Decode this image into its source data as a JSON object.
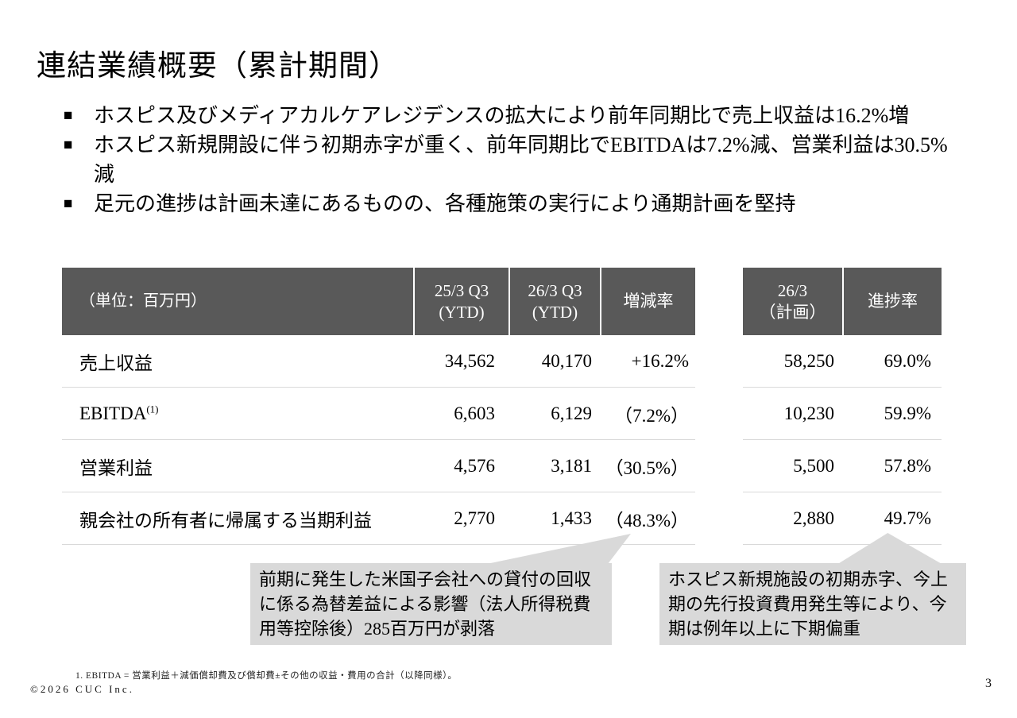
{
  "slide": {
    "title": "連結業績概要（累計期間）",
    "page_number": "3",
    "copyright": "©2026 CUC Inc.",
    "footnote": "1. EBITDA = 営業利益＋減価償却費及び償却費±その他の収益・費用の合計（以降同様）。"
  },
  "bullets": {
    "marker": "■",
    "items": [
      "ホスピス及びメディアカルケアレジデンスの拡大により前年同期比で売上収益は16.2%増",
      "ホスピス新規開設に伴う初期赤字が重く、前年同期比でEBITDAは7.2%減、営業利益は30.5%減",
      "足元の進捗は計画未達にあるものの、各種施策の実行により通期計画を堅持"
    ]
  },
  "main_table": {
    "unit_label": "（単位：百万円）",
    "col_prev_line1": "25/3 Q3",
    "col_prev_line2": "(YTD)",
    "col_curr_line1": "26/3 Q3",
    "col_curr_line2": "(YTD)",
    "col_change": "増減率",
    "rows": [
      {
        "label": "売上収益",
        "sup": "",
        "prev": "34,562",
        "curr": "40,170",
        "change": "+16.2%"
      },
      {
        "label": "EBITDA",
        "sup": "(1)",
        "prev": "6,603",
        "curr": "6,129",
        "change": "（7.2%）"
      },
      {
        "label": "営業利益",
        "sup": "",
        "prev": "4,576",
        "curr": "3,181",
        "change": "（30.5%）"
      },
      {
        "label": "親会社の所有者に帰属する当期利益",
        "sup": "",
        "prev": "2,770",
        "curr": "1,433",
        "change": "（48.3%）"
      }
    ]
  },
  "plan_table": {
    "col_plan_line1": "26/3",
    "col_plan_line2": "（計画）",
    "col_progress": "進捗率",
    "rows": [
      {
        "plan": "58,250",
        "progress": "69.0%"
      },
      {
        "plan": "10,230",
        "progress": "59.9%"
      },
      {
        "plan": "5,500",
        "progress": "57.8%"
      },
      {
        "plan": "2,880",
        "progress": "49.7%"
      }
    ]
  },
  "callouts": {
    "left": "前期に発生した米国子会社への貸付の回収に係る為替差益による影響（法人所得税費用等控除後）285百万円が剥落",
    "right": "ホスピス新規施設の初期赤字、今上期の先行投資費用発生等により、今期は例年以上に下期偏重"
  },
  "colors": {
    "header_bg": "#595959",
    "callout_bg": "#d9d9d9",
    "divider": "#d9d9d9"
  }
}
